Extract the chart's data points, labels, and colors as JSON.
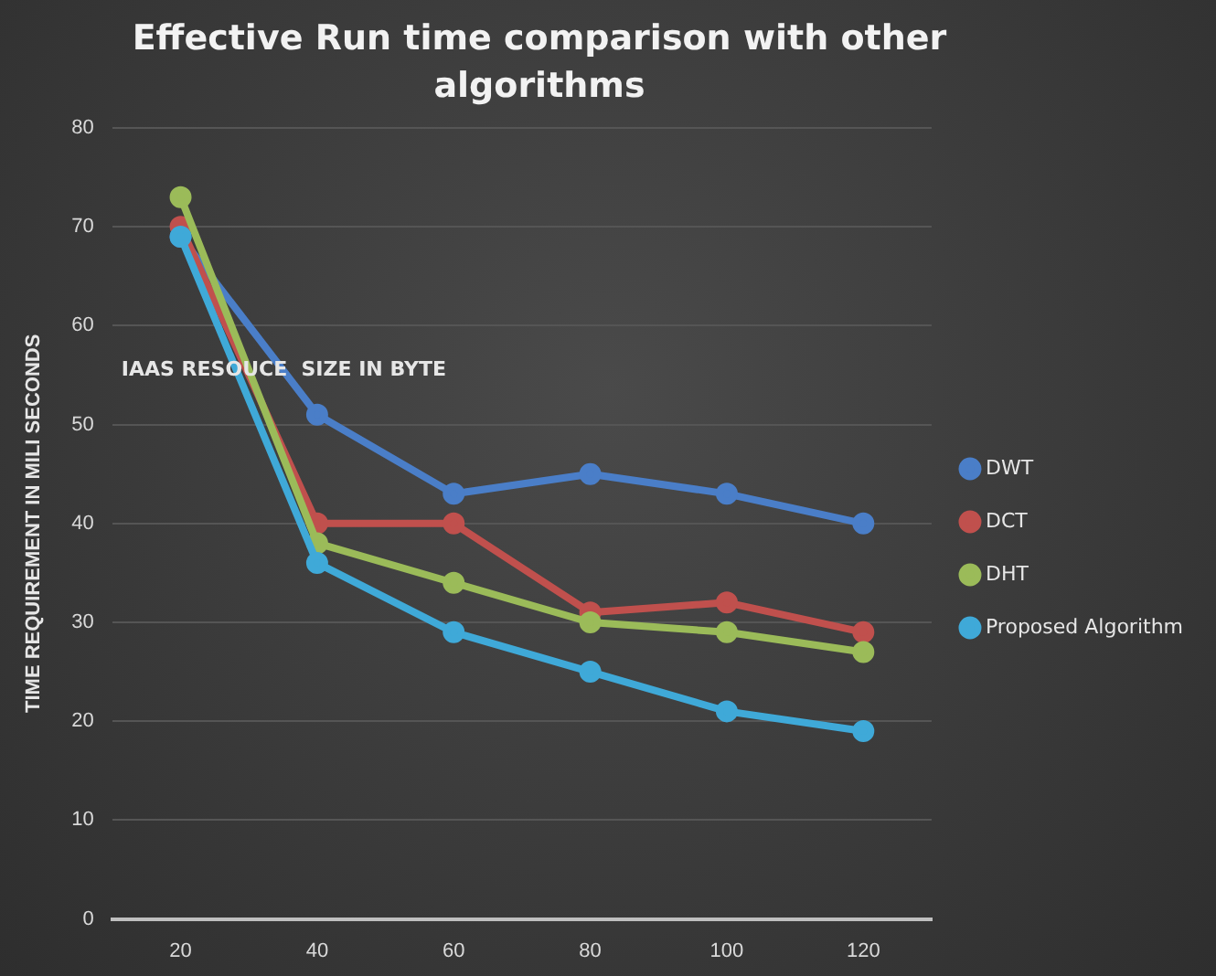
{
  "chart_data": {
    "type": "line",
    "title": "Effective Run time comparison with other algorithms",
    "ylabel": "TIME REQUIREMENT IN MILI SECONDS",
    "annotations": [
      "IAAS RESOUCE  SIZE IN BYTE"
    ],
    "categories": [
      "20",
      "40",
      "60",
      "80",
      "100",
      "120"
    ],
    "series": [
      {
        "name": "DWT",
        "color": "#4a7ec8",
        "values": [
          69,
          51,
          43,
          45,
          43,
          40
        ]
      },
      {
        "name": "DCT",
        "color": "#c0504d",
        "values": [
          70,
          40,
          40,
          31,
          32,
          29
        ]
      },
      {
        "name": "DHT",
        "color": "#9bbb59",
        "values": [
          73,
          38,
          34,
          30,
          29,
          27
        ]
      },
      {
        "name": "Proposed Algorithm",
        "color": "#3fa9d8",
        "values": [
          69,
          36,
          29,
          25,
          21,
          19
        ]
      }
    ],
    "ylim": [
      0,
      80
    ],
    "yticks": [
      0,
      10,
      20,
      30,
      40,
      50,
      60,
      70,
      80
    ],
    "grid": "y",
    "legend": "right",
    "marker": "circle",
    "line_style": "solid"
  }
}
